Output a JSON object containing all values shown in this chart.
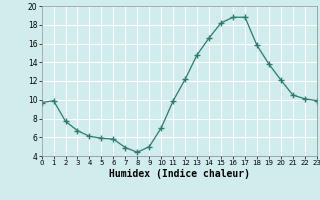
{
  "x": [
    0,
    1,
    2,
    3,
    4,
    5,
    6,
    7,
    8,
    9,
    10,
    11,
    12,
    13,
    14,
    15,
    16,
    17,
    18,
    19,
    20,
    21,
    22,
    23
  ],
  "y": [
    9.7,
    9.9,
    7.7,
    6.7,
    6.1,
    5.9,
    5.8,
    4.9,
    4.4,
    5.0,
    7.0,
    9.9,
    12.2,
    14.8,
    16.6,
    18.2,
    18.8,
    18.8,
    15.8,
    13.8,
    12.1,
    10.5,
    10.1,
    9.9
  ],
  "line_color": "#2d7a6e",
  "marker": "+",
  "marker_size": 4,
  "marker_linewidth": 1.0,
  "bg_color": "#d0ecec",
  "grid_color": "#ffffff",
  "xlabel": "Humidex (Indice chaleur)",
  "ylim": [
    4,
    20
  ],
  "xlim": [
    0,
    23
  ],
  "yticks": [
    4,
    6,
    8,
    10,
    12,
    14,
    16,
    18,
    20
  ],
  "xticks": [
    0,
    1,
    2,
    3,
    4,
    5,
    6,
    7,
    8,
    9,
    10,
    11,
    12,
    13,
    14,
    15,
    16,
    17,
    18,
    19,
    20,
    21,
    22,
    23
  ]
}
